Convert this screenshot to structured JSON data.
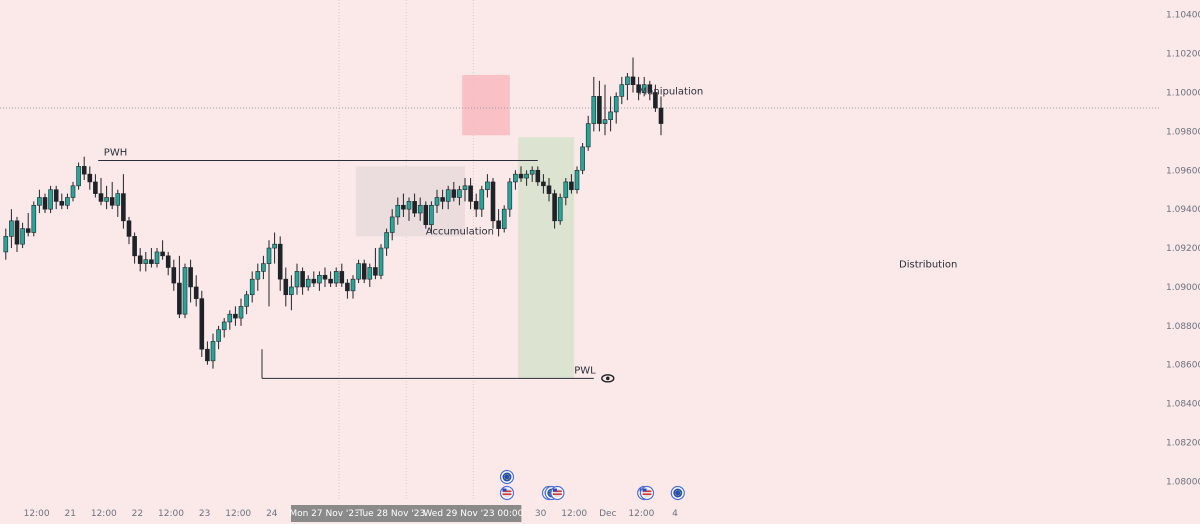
{
  "colors": {
    "background": "#fbe9e9",
    "bull": "#26a69a",
    "bear": "#1f2328",
    "grid": "#d7c8c8",
    "accumulation_box": "#e8dada",
    "manipulation_box": "#f8b9bf",
    "distribution_box": "#d6e2cc",
    "level_line": "#2a2e39",
    "badge": "#8a8a8a"
  },
  "chart_data": {
    "type": "candlestick",
    "y_axis": {
      "ylim": [
        1.0792,
        1.1046
      ],
      "ticks": [
        "1.10400",
        "1.10200",
        "1.10000",
        "1.09800",
        "1.09600",
        "1.09400",
        "1.09200",
        "1.09000",
        "1.08800",
        "1.08600",
        "1.08400",
        "1.08200",
        "1.08000"
      ],
      "tick_values": [
        1.104,
        1.102,
        1.1,
        1.098,
        1.096,
        1.094,
        1.092,
        1.09,
        1.088,
        1.086,
        1.084,
        1.082,
        1.08
      ]
    },
    "x_axis": {
      "hours_per_candle": 2,
      "ticks": [
        {
          "label": "12:00",
          "hour": 12
        },
        {
          "label": "21",
          "hour": 24
        },
        {
          "label": "12:00",
          "hour": 36
        },
        {
          "label": "22",
          "hour": 48
        },
        {
          "label": "12:00",
          "hour": 60
        },
        {
          "label": "23",
          "hour": 72
        },
        {
          "label": "12:00",
          "hour": 84
        },
        {
          "label": "24",
          "hour": 96
        },
        {
          "label": "12:00",
          "hour": 108
        },
        {
          "label": "12:00",
          "hour": 132
        },
        {
          "label": "12:00",
          "hour": 156
        },
        {
          "label": "12:00",
          "hour": 180
        },
        {
          "label": "30",
          "hour": 192
        },
        {
          "label": "12:00",
          "hour": 204
        },
        {
          "label": "Dec",
          "hour": 216
        },
        {
          "label": "12:00",
          "hour": 228
        },
        {
          "label": "4",
          "hour": 240
        }
      ],
      "date_badges": [
        {
          "label": "Mon 27 Nov '23   00:00",
          "hour": 120
        },
        {
          "label": "Tue 28 Nov '23   00:00",
          "hour": 144
        },
        {
          "label": "Wed 29 Nov '23   00:00",
          "hour": 168
        }
      ]
    },
    "candles": [
      [
        1.0918,
        1.093,
        1.0914,
        1.0926
      ],
      [
        1.0926,
        1.094,
        1.092,
        1.0934
      ],
      [
        1.0934,
        1.0936,
        1.0918,
        1.0922
      ],
      [
        1.0922,
        1.0933,
        1.092,
        1.093
      ],
      [
        1.093,
        1.0938,
        1.0926,
        1.0928
      ],
      [
        1.0928,
        1.0944,
        1.0926,
        1.0942
      ],
      [
        1.0942,
        1.095,
        1.0938,
        1.0946
      ],
      [
        1.0946,
        1.0948,
        1.0938,
        1.094
      ],
      [
        1.094,
        1.0952,
        1.0938,
        1.095
      ],
      [
        1.095,
        1.0952,
        1.094,
        1.0944
      ],
      [
        1.0944,
        1.0948,
        1.094,
        1.0942
      ],
      [
        1.0942,
        1.0948,
        1.094,
        1.0946
      ],
      [
        1.0946,
        1.0954,
        1.0944,
        1.0952
      ],
      [
        1.0952,
        1.0964,
        1.095,
        1.0962
      ],
      [
        1.0962,
        1.0967,
        1.0955,
        1.0958
      ],
      [
        1.0958,
        1.0962,
        1.095,
        1.0954
      ],
      [
        1.0954,
        1.0958,
        1.0946,
        1.0948
      ],
      [
        1.0948,
        1.0956,
        1.0942,
        1.0944
      ],
      [
        1.0944,
        1.0952,
        1.094,
        1.0946
      ],
      [
        1.0946,
        1.0954,
        1.094,
        1.0942
      ],
      [
        1.0942,
        1.095,
        1.0936,
        1.0948
      ],
      [
        1.0948,
        1.0958,
        1.093,
        1.0934
      ],
      [
        1.0934,
        1.0936,
        1.0922,
        1.0926
      ],
      [
        1.0926,
        1.0928,
        1.0912,
        1.0916
      ],
      [
        1.0916,
        1.092,
        1.0908,
        1.0912
      ],
      [
        1.0912,
        1.0918,
        1.0908,
        1.0914
      ],
      [
        1.0914,
        1.092,
        1.091,
        1.0912
      ],
      [
        1.0912,
        1.092,
        1.091,
        1.0918
      ],
      [
        1.0918,
        1.0924,
        1.0914,
        1.0916
      ],
      [
        1.0916,
        1.0918,
        1.0906,
        1.091
      ],
      [
        1.091,
        1.0914,
        1.0898,
        1.0902
      ],
      [
        1.0902,
        1.0916,
        1.0884,
        1.0886
      ],
      [
        1.0886,
        1.0912,
        1.0884,
        1.091
      ],
      [
        1.091,
        1.0914,
        1.0892,
        1.09
      ],
      [
        1.09,
        1.0906,
        1.089,
        1.0894
      ],
      [
        1.0894,
        1.0898,
        1.0864,
        1.0868
      ],
      [
        1.0868,
        1.0872,
        1.086,
        1.0862
      ],
      [
        1.0862,
        1.0876,
        1.0858,
        1.0872
      ],
      [
        1.0872,
        1.088,
        1.0868,
        1.0878
      ],
      [
        1.0878,
        1.0884,
        1.0874,
        1.0882
      ],
      [
        1.0882,
        1.0888,
        1.0878,
        1.0886
      ],
      [
        1.0886,
        1.089,
        1.088,
        1.0884
      ],
      [
        1.0884,
        1.0894,
        1.088,
        1.089
      ],
      [
        1.089,
        1.0898,
        1.0886,
        1.0896
      ],
      [
        1.0896,
        1.0908,
        1.0892,
        1.0904
      ],
      [
        1.0904,
        1.0912,
        1.0898,
        1.0908
      ],
      [
        1.0908,
        1.0916,
        1.0904,
        1.0912
      ],
      [
        1.0912,
        1.0924,
        1.089,
        1.092
      ],
      [
        1.092,
        1.0928,
        1.0912,
        1.0922
      ],
      [
        1.0922,
        1.0926,
        1.0898,
        1.0904
      ],
      [
        1.0904,
        1.091,
        1.089,
        1.0896
      ],
      [
        1.0896,
        1.0906,
        1.0888,
        1.09
      ],
      [
        1.09,
        1.0912,
        1.0896,
        1.0908
      ],
      [
        1.0908,
        1.091,
        1.0896,
        1.09
      ],
      [
        1.09,
        1.0906,
        1.0898,
        1.0904
      ],
      [
        1.0904,
        1.0908,
        1.09,
        1.0902
      ],
      [
        1.0902,
        1.0908,
        1.0898,
        1.0906
      ],
      [
        1.0906,
        1.091,
        1.09,
        1.0904
      ],
      [
        1.0904,
        1.0908,
        1.09,
        1.0902
      ],
      [
        1.0902,
        1.091,
        1.09,
        1.0908
      ],
      [
        1.0908,
        1.0912,
        1.09,
        1.0902
      ],
      [
        1.0902,
        1.0904,
        1.0894,
        1.0898
      ],
      [
        1.0898,
        1.0906,
        1.0894,
        1.0904
      ],
      [
        1.0904,
        1.0914,
        1.0902,
        1.0912
      ],
      [
        1.0912,
        1.0914,
        1.0902,
        1.0904
      ],
      [
        1.0904,
        1.0912,
        1.09,
        1.091
      ],
      [
        1.091,
        1.092,
        1.0904,
        1.0906
      ],
      [
        1.0906,
        1.0922,
        1.0904,
        1.092
      ],
      [
        1.092,
        1.093,
        1.0916,
        1.0928
      ],
      [
        1.0928,
        1.094,
        1.0924,
        1.0936
      ],
      [
        1.0936,
        1.0946,
        1.0932,
        1.0942
      ],
      [
        1.0942,
        1.0948,
        1.0936,
        1.094
      ],
      [
        1.094,
        1.0946,
        1.0934,
        1.0944
      ],
      [
        1.0944,
        1.0948,
        1.0936,
        1.0938
      ],
      [
        1.0938,
        1.0946,
        1.0934,
        1.0942
      ],
      [
        1.0942,
        1.0944,
        1.093,
        1.0932
      ],
      [
        1.0932,
        1.0944,
        1.0928,
        1.0942
      ],
      [
        1.0942,
        1.095,
        1.0938,
        1.0946
      ],
      [
        1.0946,
        1.095,
        1.094,
        1.0944
      ],
      [
        1.0944,
        1.0952,
        1.094,
        1.095
      ],
      [
        1.095,
        1.0954,
        1.0944,
        1.0946
      ],
      [
        1.0946,
        1.0952,
        1.0942,
        1.095
      ],
      [
        1.095,
        1.0956,
        1.0944,
        1.0952
      ],
      [
        1.0952,
        1.0956,
        1.094,
        1.0944
      ],
      [
        1.0944,
        1.0948,
        1.0936,
        1.094
      ],
      [
        1.094,
        1.0952,
        1.0936,
        1.095
      ],
      [
        1.095,
        1.0958,
        1.0946,
        1.0954
      ],
      [
        1.0954,
        1.0956,
        1.093,
        1.0934
      ],
      [
        1.0934,
        1.094,
        1.0926,
        1.093
      ],
      [
        1.093,
        1.0942,
        1.0928,
        1.094
      ],
      [
        1.094,
        1.0956,
        1.0936,
        1.0954
      ],
      [
        1.0954,
        1.096,
        1.095,
        1.0958
      ],
      [
        1.0958,
        1.0962,
        1.0954,
        1.0956
      ],
      [
        1.0956,
        1.096,
        1.0952,
        1.0958
      ],
      [
        1.0958,
        1.0962,
        1.0954,
        1.096
      ],
      [
        1.096,
        1.0962,
        1.0952,
        1.0954
      ],
      [
        1.0954,
        1.0958,
        1.0948,
        1.0952
      ],
      [
        1.0952,
        1.0956,
        1.0944,
        1.0948
      ],
      [
        1.0948,
        1.095,
        1.093,
        1.0934
      ],
      [
        1.0934,
        1.0948,
        1.0932,
        1.0946
      ],
      [
        1.0946,
        1.0956,
        1.0942,
        1.0954
      ],
      [
        1.0954,
        1.0958,
        1.0948,
        1.095
      ],
      [
        1.095,
        1.0962,
        1.0948,
        1.096
      ],
      [
        1.096,
        1.0974,
        1.0958,
        1.0972
      ],
      [
        1.0972,
        1.0988,
        1.097,
        1.0984
      ],
      [
        1.0984,
        1.1008,
        1.098,
        1.0998
      ],
      [
        1.0998,
        1.1006,
        1.098,
        1.0984
      ],
      [
        1.0984,
        1.1004,
        1.0978,
        1.0986
      ],
      [
        1.0986,
        1.0998,
        1.098,
        1.099
      ],
      [
        1.099,
        1.1,
        1.0984,
        1.0998
      ],
      [
        1.0998,
        1.1008,
        1.0994,
        1.1004
      ],
      [
        1.1004,
        1.101,
        1.0996,
        1.1008
      ],
      [
        1.1008,
        1.1018,
        1.1,
        1.1004
      ],
      [
        1.1004,
        1.1008,
        1.0996,
        1.1
      ],
      [
        1.1,
        1.1008,
        1.0998,
        1.1004
      ],
      [
        1.1004,
        1.1006,
        1.0996,
        1.1
      ],
      [
        1.1,
        1.1004,
        1.099,
        1.0992
      ],
      [
        1.0992,
        1.0998,
        1.0978,
        1.0984
      ]
    ],
    "annotations": [
      {
        "text": "PWH",
        "price": 1.0965
      },
      {
        "text": "PWL",
        "price": 1.0853
      },
      {
        "text": "Accumulation"
      },
      {
        "text": "Manipulation"
      },
      {
        "text": "Distribution"
      }
    ],
    "reference_price": 1.0992,
    "zones": [
      {
        "name": "Accumulation",
        "from_hour": 126,
        "to_hour": 165,
        "from_price": 1.0926,
        "to_price": 1.0962
      },
      {
        "name": "Manipulation",
        "from_hour": 164,
        "to_hour": 181,
        "from_price": 1.0978,
        "to_price": 1.1009
      },
      {
        "name": "Distribution",
        "from_hour": 184,
        "to_hour": 204,
        "from_price": 1.0853,
        "to_price": 1.0977
      }
    ],
    "grid": "vertical separators at day starts of 27, 28, 29 Nov",
    "events": [
      {
        "icon": "eu-flag-icon",
        "hour": 180
      },
      {
        "icon": "us-flag-icon",
        "hour": 180
      },
      {
        "icon": "eu-flag-icon",
        "hour": 195
      },
      {
        "icon": "eu-flag-icon",
        "hour": 196
      },
      {
        "icon": "us-flag-icon",
        "hour": 198
      },
      {
        "icon": "us-flag-icon",
        "hour": 229
      },
      {
        "icon": "us-flag-icon",
        "hour": 230
      },
      {
        "icon": "eu-flag-icon",
        "hour": 241
      }
    ]
  }
}
